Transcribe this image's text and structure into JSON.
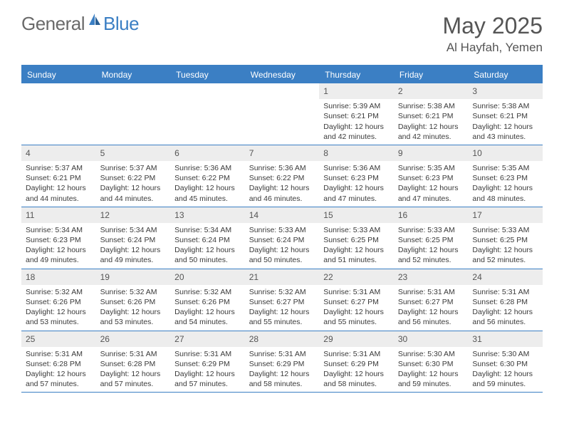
{
  "brand": {
    "part1": "General",
    "part2": "Blue"
  },
  "title": "May 2025",
  "location": "Al Hayfah, Yemen",
  "colors": {
    "accent": "#3b7fc4",
    "dayHeaderBg": "#3b7fc4",
    "dayHeaderText": "#ffffff",
    "dayNumBg": "#ededed",
    "text": "#3a3a3a",
    "titleText": "#555555",
    "background": "#ffffff"
  },
  "dayNames": [
    "Sunday",
    "Monday",
    "Tuesday",
    "Wednesday",
    "Thursday",
    "Friday",
    "Saturday"
  ],
  "weeks": [
    [
      {
        "empty": true
      },
      {
        "empty": true
      },
      {
        "empty": true
      },
      {
        "empty": true
      },
      {
        "num": "1",
        "sunrise": "5:39 AM",
        "sunset": "6:21 PM",
        "daylight": "12 hours and 42 minutes."
      },
      {
        "num": "2",
        "sunrise": "5:38 AM",
        "sunset": "6:21 PM",
        "daylight": "12 hours and 42 minutes."
      },
      {
        "num": "3",
        "sunrise": "5:38 AM",
        "sunset": "6:21 PM",
        "daylight": "12 hours and 43 minutes."
      }
    ],
    [
      {
        "num": "4",
        "sunrise": "5:37 AM",
        "sunset": "6:21 PM",
        "daylight": "12 hours and 44 minutes."
      },
      {
        "num": "5",
        "sunrise": "5:37 AM",
        "sunset": "6:22 PM",
        "daylight": "12 hours and 44 minutes."
      },
      {
        "num": "6",
        "sunrise": "5:36 AM",
        "sunset": "6:22 PM",
        "daylight": "12 hours and 45 minutes."
      },
      {
        "num": "7",
        "sunrise": "5:36 AM",
        "sunset": "6:22 PM",
        "daylight": "12 hours and 46 minutes."
      },
      {
        "num": "8",
        "sunrise": "5:36 AM",
        "sunset": "6:23 PM",
        "daylight": "12 hours and 47 minutes."
      },
      {
        "num": "9",
        "sunrise": "5:35 AM",
        "sunset": "6:23 PM",
        "daylight": "12 hours and 47 minutes."
      },
      {
        "num": "10",
        "sunrise": "5:35 AM",
        "sunset": "6:23 PM",
        "daylight": "12 hours and 48 minutes."
      }
    ],
    [
      {
        "num": "11",
        "sunrise": "5:34 AM",
        "sunset": "6:23 PM",
        "daylight": "12 hours and 49 minutes."
      },
      {
        "num": "12",
        "sunrise": "5:34 AM",
        "sunset": "6:24 PM",
        "daylight": "12 hours and 49 minutes."
      },
      {
        "num": "13",
        "sunrise": "5:34 AM",
        "sunset": "6:24 PM",
        "daylight": "12 hours and 50 minutes."
      },
      {
        "num": "14",
        "sunrise": "5:33 AM",
        "sunset": "6:24 PM",
        "daylight": "12 hours and 50 minutes."
      },
      {
        "num": "15",
        "sunrise": "5:33 AM",
        "sunset": "6:25 PM",
        "daylight": "12 hours and 51 minutes."
      },
      {
        "num": "16",
        "sunrise": "5:33 AM",
        "sunset": "6:25 PM",
        "daylight": "12 hours and 52 minutes."
      },
      {
        "num": "17",
        "sunrise": "5:33 AM",
        "sunset": "6:25 PM",
        "daylight": "12 hours and 52 minutes."
      }
    ],
    [
      {
        "num": "18",
        "sunrise": "5:32 AM",
        "sunset": "6:26 PM",
        "daylight": "12 hours and 53 minutes."
      },
      {
        "num": "19",
        "sunrise": "5:32 AM",
        "sunset": "6:26 PM",
        "daylight": "12 hours and 53 minutes."
      },
      {
        "num": "20",
        "sunrise": "5:32 AM",
        "sunset": "6:26 PM",
        "daylight": "12 hours and 54 minutes."
      },
      {
        "num": "21",
        "sunrise": "5:32 AM",
        "sunset": "6:27 PM",
        "daylight": "12 hours and 55 minutes."
      },
      {
        "num": "22",
        "sunrise": "5:31 AM",
        "sunset": "6:27 PM",
        "daylight": "12 hours and 55 minutes."
      },
      {
        "num": "23",
        "sunrise": "5:31 AM",
        "sunset": "6:27 PM",
        "daylight": "12 hours and 56 minutes."
      },
      {
        "num": "24",
        "sunrise": "5:31 AM",
        "sunset": "6:28 PM",
        "daylight": "12 hours and 56 minutes."
      }
    ],
    [
      {
        "num": "25",
        "sunrise": "5:31 AM",
        "sunset": "6:28 PM",
        "daylight": "12 hours and 57 minutes."
      },
      {
        "num": "26",
        "sunrise": "5:31 AM",
        "sunset": "6:28 PM",
        "daylight": "12 hours and 57 minutes."
      },
      {
        "num": "27",
        "sunrise": "5:31 AM",
        "sunset": "6:29 PM",
        "daylight": "12 hours and 57 minutes."
      },
      {
        "num": "28",
        "sunrise": "5:31 AM",
        "sunset": "6:29 PM",
        "daylight": "12 hours and 58 minutes."
      },
      {
        "num": "29",
        "sunrise": "5:31 AM",
        "sunset": "6:29 PM",
        "daylight": "12 hours and 58 minutes."
      },
      {
        "num": "30",
        "sunrise": "5:30 AM",
        "sunset": "6:30 PM",
        "daylight": "12 hours and 59 minutes."
      },
      {
        "num": "31",
        "sunrise": "5:30 AM",
        "sunset": "6:30 PM",
        "daylight": "12 hours and 59 minutes."
      }
    ]
  ],
  "labels": {
    "sunrise": "Sunrise:",
    "sunset": "Sunset:",
    "daylight": "Daylight:"
  }
}
